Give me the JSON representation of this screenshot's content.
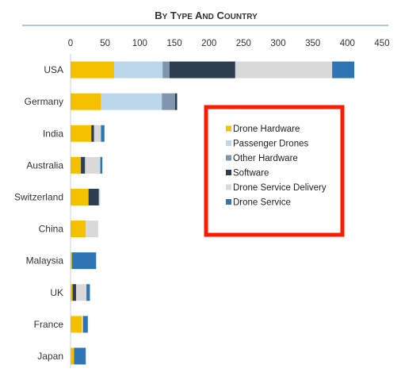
{
  "chart_data": {
    "type": "bar",
    "orientation": "horizontal",
    "stacked": true,
    "title": "By Type and Country",
    "xlim": [
      0,
      450
    ],
    "xticks": [
      0,
      50,
      100,
      150,
      200,
      250,
      300,
      350,
      400,
      450
    ],
    "categories": [
      "USA",
      "Germany",
      "India",
      "Australia",
      "Switzerland",
      "China",
      "Malaysia",
      "UK",
      "France",
      "Japan"
    ],
    "series": [
      {
        "name": "Drone Hardware",
        "color": "#f5c000",
        "values": [
          63,
          44,
          30,
          15,
          26,
          22,
          2,
          3,
          16,
          5
        ]
      },
      {
        "name": "Passenger Drones",
        "color": "#bcd6ec",
        "values": [
          70,
          88,
          0,
          0,
          0,
          0,
          0,
          0,
          0,
          0
        ]
      },
      {
        "name": "Other Hardware",
        "color": "#7f96ae",
        "values": [
          10,
          19,
          0,
          0,
          0,
          0,
          0,
          0,
          0,
          0
        ]
      },
      {
        "name": "Software",
        "color": "#2d3e50",
        "values": [
          95,
          3,
          4,
          6,
          15,
          0,
          0,
          5,
          0,
          0
        ]
      },
      {
        "name": "Drone Service Delivery",
        "color": "#d9d9d9",
        "values": [
          140,
          0,
          10,
          22,
          2,
          18,
          0,
          15,
          2,
          0
        ]
      },
      {
        "name": "Drone Service",
        "color": "#2e75b6",
        "values": [
          32,
          0,
          5,
          3,
          0,
          0,
          35,
          5,
          7,
          17
        ]
      }
    ],
    "legend_position": "right",
    "legend_highlight_color": "#ff1a00",
    "grid": false
  }
}
